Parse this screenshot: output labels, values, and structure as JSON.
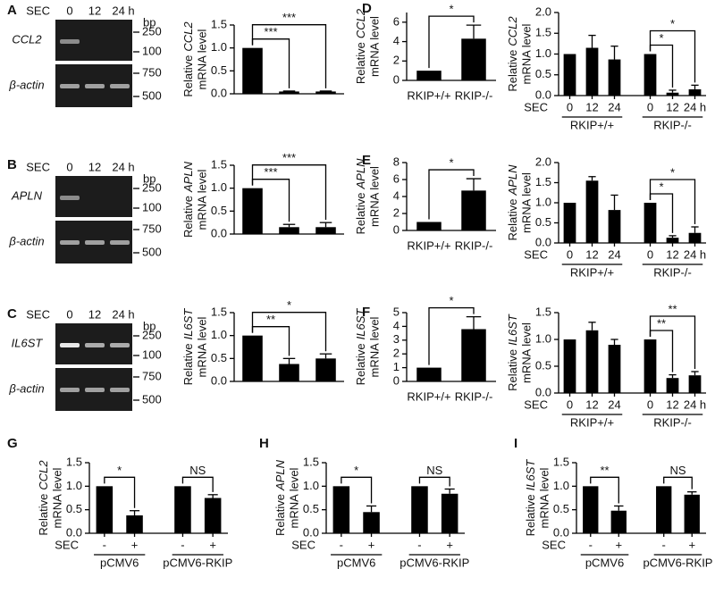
{
  "gels": [
    {
      "header": [
        "SEC",
        "0",
        "12",
        "24 h"
      ],
      "bp_label": "bp",
      "gene": "CCL2",
      "reference": "β-actin",
      "ladder_top": [
        "250",
        "100"
      ],
      "ladder_bottom": [
        "750",
        "500"
      ]
    },
    {
      "header": [
        "SEC",
        "0",
        "12",
        "24 h"
      ],
      "bp_label": "bp",
      "gene": "APLN",
      "reference": "β-actin",
      "ladder_top": [
        "250",
        "100"
      ],
      "ladder_bottom": [
        "750",
        "500"
      ]
    },
    {
      "header": [
        "SEC",
        "0",
        "12",
        "24 h"
      ],
      "bp_label": "bp",
      "gene": "IL6ST",
      "reference": "β-actin",
      "ladder_top": [
        "250",
        "100"
      ],
      "ladder_bottom": [
        "750",
        "500"
      ]
    }
  ],
  "chart_data": [
    {
      "type": "bar",
      "panel": "A",
      "ylabel": [
        "Relative",
        "CCL2",
        "mRNA level"
      ],
      "categories": [
        null,
        null,
        null
      ],
      "values": [
        1,
        0.05,
        0.05
      ],
      "errors": [
        0,
        0.01,
        0.01
      ],
      "color": "#000000",
      "ylim": [
        0,
        1.5
      ],
      "yticks": [
        {
          "value": 0,
          "label": "0.0"
        },
        0.5,
        {
          "value": 1,
          "label": "1.0"
        },
        1.5
      ],
      "significance": [
        {
          "pair": [
            0,
            1
          ],
          "label": "***"
        },
        {
          "pair": [
            0,
            2
          ],
          "label": "***"
        }
      ]
    },
    {
      "type": "bar",
      "panel": "B",
      "ylabel": [
        "Relative",
        "APLN",
        "mRNA level"
      ],
      "categories": [
        null,
        null,
        null
      ],
      "values": [
        1,
        0.15,
        0.15
      ],
      "errors": [
        0,
        0.06,
        0.1
      ],
      "color": "#000000",
      "ylim": [
        0,
        1.5
      ],
      "yticks": [
        {
          "value": 0,
          "label": "0.0"
        },
        0.5,
        {
          "value": 1,
          "label": "1.0"
        },
        1.5
      ],
      "significance": [
        {
          "pair": [
            0,
            1
          ],
          "label": "***"
        },
        {
          "pair": [
            0,
            2
          ],
          "label": "***"
        }
      ]
    },
    {
      "type": "bar",
      "panel": "C",
      "ylabel": [
        "Relative",
        "IL6ST",
        "mRNA level"
      ],
      "categories": [
        null,
        null,
        null
      ],
      "values": [
        1,
        0.38,
        0.5
      ],
      "errors": [
        0,
        0.12,
        0.1
      ],
      "color": "#000000",
      "ylim": [
        0,
        1.5
      ],
      "yticks": [
        {
          "value": 0,
          "label": "0.0"
        },
        0.5,
        {
          "value": 1,
          "label": "1.0"
        },
        1.5
      ],
      "significance": [
        {
          "pair": [
            0,
            1
          ],
          "label": "**"
        },
        {
          "pair": [
            0,
            2
          ],
          "label": "*"
        }
      ]
    },
    {
      "type": "bar",
      "panel": "D",
      "ylabel": [
        "Relative",
        "CCL2",
        "mRNA level"
      ],
      "categories": [
        "RKIP+/+",
        "RKIP-/-"
      ],
      "values": [
        1,
        4.3
      ],
      "errors": [
        0,
        1.4
      ],
      "color": "#000000",
      "ylim": [
        0,
        7
      ],
      "yticks": [
        0,
        2,
        4,
        6
      ],
      "significance": [
        {
          "pair": [
            0,
            1
          ],
          "label": "*"
        }
      ]
    },
    {
      "type": "bar",
      "ylabel": [
        "Relative",
        "CCL2",
        "mRNA level"
      ],
      "xlabel": "SEC",
      "categories": [
        "0",
        "12",
        "24",
        "0",
        "12",
        "24 h"
      ],
      "groups": [
        "RKIP+/+",
        "RKIP-/-"
      ],
      "values": [
        1,
        1.15,
        0.87,
        1,
        0.07,
        0.15
      ],
      "errors": [
        0,
        0.3,
        0.32,
        0,
        0.06,
        0.1
      ],
      "color": "#000000",
      "ylim": [
        0,
        2
      ],
      "yticks": [
        {
          "value": 0,
          "label": "0.0"
        },
        0.5,
        {
          "value": 1,
          "label": "1.0"
        },
        1.5,
        {
          "value": 2,
          "label": "2.0"
        }
      ],
      "significance": [
        {
          "pair": [
            3,
            4
          ],
          "label": "*"
        },
        {
          "pair": [
            3,
            5
          ],
          "label": "*"
        }
      ]
    },
    {
      "type": "bar",
      "panel": "E",
      "ylabel": [
        "Relative",
        "APLN",
        "mRNA level"
      ],
      "categories": [
        "RKIP+/+",
        "RKIP-/-"
      ],
      "values": [
        1,
        4.7
      ],
      "errors": [
        0,
        1.4
      ],
      "color": "#000000",
      "ylim": [
        0,
        8
      ],
      "yticks": [
        0,
        2,
        4,
        6,
        8
      ],
      "significance": [
        {
          "pair": [
            0,
            1
          ],
          "label": "*"
        }
      ]
    },
    {
      "type": "bar",
      "ylabel": [
        "Relative",
        "APLN",
        "mRNA level"
      ],
      "xlabel": "SEC",
      "categories": [
        "0",
        "12",
        "24",
        "0",
        "12",
        "24 h"
      ],
      "groups": [
        "RKIP+/+",
        "RKIP-/-"
      ],
      "values": [
        1,
        1.55,
        0.82,
        1,
        0.13,
        0.25
      ],
      "errors": [
        0,
        0.1,
        0.37,
        0,
        0.05,
        0.15
      ],
      "color": "#000000",
      "ylim": [
        0,
        2
      ],
      "yticks": [
        {
          "value": 0,
          "label": "0.0"
        },
        0.5,
        {
          "value": 1,
          "label": "1.0"
        },
        1.5,
        {
          "value": 2,
          "label": "2.0"
        }
      ],
      "significance": [
        {
          "pair": [
            3,
            4
          ],
          "label": "*"
        },
        {
          "pair": [
            3,
            5
          ],
          "label": "*"
        }
      ]
    },
    {
      "type": "bar",
      "panel": "F",
      "ylabel": [
        "Relative",
        "IL6ST",
        "mRNA level"
      ],
      "categories": [
        "RKIP+/+",
        "RKIP-/-"
      ],
      "values": [
        1,
        3.8
      ],
      "errors": [
        0,
        0.9
      ],
      "color": "#000000",
      "ylim": [
        0,
        5
      ],
      "yticks": [
        0,
        1,
        2,
        3,
        4,
        5
      ],
      "significance": [
        {
          "pair": [
            0,
            1
          ],
          "label": "*"
        }
      ]
    },
    {
      "type": "bar",
      "ylabel": [
        "Relative",
        "IL6ST",
        "mRNA level"
      ],
      "xlabel": "SEC",
      "categories": [
        "0",
        "12",
        "24",
        "0",
        "12",
        "24 h"
      ],
      "groups": [
        "RKIP+/+",
        "RKIP-/-"
      ],
      "values": [
        1,
        1.17,
        0.9,
        1,
        0.28,
        0.33
      ],
      "errors": [
        0,
        0.15,
        0.1,
        0,
        0.06,
        0.07
      ],
      "color": "#000000",
      "ylim": [
        0,
        1.5
      ],
      "yticks": [
        {
          "value": 0,
          "label": "0.0"
        },
        0.5,
        {
          "value": 1,
          "label": "1.0"
        },
        1.5
      ],
      "significance": [
        {
          "pair": [
            3,
            4
          ],
          "label": "**"
        },
        {
          "pair": [
            3,
            5
          ],
          "label": "**"
        }
      ]
    },
    {
      "type": "bar",
      "panel": "G",
      "ylabel": [
        "Relative",
        "CCL2",
        "mRNA level"
      ],
      "xlabel": "SEC",
      "categories": [
        "-",
        "+",
        "-",
        "+"
      ],
      "groups": [
        "pCMV6",
        "pCMV6-RKIP"
      ],
      "values": [
        1,
        0.38,
        1,
        0.75
      ],
      "errors": [
        0,
        0.1,
        0,
        0.07
      ],
      "color": "#000000",
      "ylim": [
        0,
        1.5
      ],
      "yticks": [
        {
          "value": 0,
          "label": "0.0"
        },
        0.5,
        {
          "value": 1,
          "label": "1.0"
        },
        1.5
      ],
      "significance": [
        {
          "pair": [
            0,
            1
          ],
          "label": "*"
        },
        {
          "pair": [
            2,
            3
          ],
          "label": "NS"
        }
      ]
    },
    {
      "type": "bar",
      "panel": "H",
      "ylabel": [
        "Relative",
        "APLN",
        "mRNA level"
      ],
      "xlabel": "SEC",
      "categories": [
        "-",
        "+",
        "-",
        "+"
      ],
      "groups": [
        "pCMV6",
        "pCMV6-RKIP"
      ],
      "values": [
        1,
        0.45,
        1,
        0.84
      ],
      "errors": [
        0,
        0.13,
        0,
        0.1
      ],
      "color": "#000000",
      "ylim": [
        0,
        1.5
      ],
      "yticks": [
        {
          "value": 0,
          "label": "0.0"
        },
        0.5,
        {
          "value": 1,
          "label": "1.0"
        },
        1.5
      ],
      "significance": [
        {
          "pair": [
            0,
            1
          ],
          "label": "*"
        },
        {
          "pair": [
            2,
            3
          ],
          "label": "NS"
        }
      ]
    },
    {
      "type": "bar",
      "panel": "I",
      "ylabel": [
        "Relative",
        "IL6ST",
        "mRNA level"
      ],
      "xlabel": "SEC",
      "categories": [
        "-",
        "+",
        "-",
        "+"
      ],
      "groups": [
        "pCMV6",
        "pCMV6-RKIP"
      ],
      "values": [
        1,
        0.48,
        1,
        0.82
      ],
      "errors": [
        0,
        0.1,
        0,
        0.06
      ],
      "color": "#000000",
      "ylim": [
        0,
        1.5
      ],
      "yticks": [
        {
          "value": 0,
          "label": "0.0"
        },
        0.5,
        {
          "value": 1,
          "label": "1.0"
        },
        1.5
      ],
      "significance": [
        {
          "pair": [
            0,
            1
          ],
          "label": "**"
        },
        {
          "pair": [
            2,
            3
          ],
          "label": "NS"
        }
      ]
    }
  ]
}
